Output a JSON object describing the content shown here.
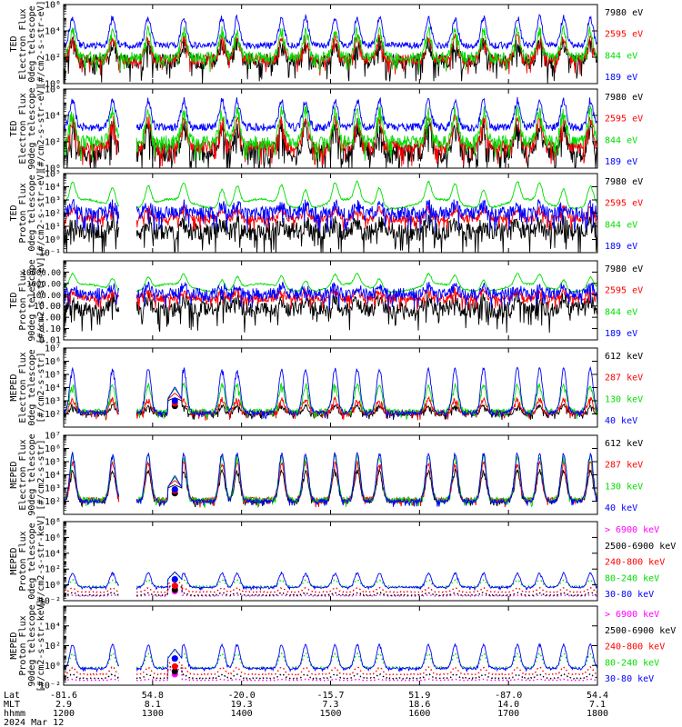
{
  "chart_data": {
    "type": "line",
    "panels": [
      {
        "ylabel": [
          "TED",
          "Electron Flux",
          "0deg telescope",
          "[#/cm2-s-str-eV]"
        ],
        "yscale": "log",
        "ylim": [
          1,
          1000000
        ],
        "ticks": [
          {
            "v": 1,
            "label": "10⁰"
          },
          {
            "v": 100,
            "label": "10²"
          },
          {
            "v": 10000,
            "label": "10⁴"
          },
          {
            "v": 1000000,
            "label": "10⁶"
          }
        ],
        "series": [
          {
            "name": "7980 eV",
            "color": "#000000",
            "base": 1.7,
            "spike": 1.3,
            "noise": 0.6,
            "trace": "noisy"
          },
          {
            "name": "2595 eV",
            "color": "#ff0000",
            "base": 1.8,
            "spike": 1.6,
            "noise": 0.4,
            "trace": "noisy"
          },
          {
            "name": "844 eV",
            "color": "#00dd00",
            "base": 2.0,
            "spike": 2.0,
            "noise": 0.4,
            "trace": "noisy"
          },
          {
            "name": "189 eV",
            "color": "#0000ff",
            "base": 2.9,
            "spike": 2.1,
            "noise": 0.25,
            "trace": "band"
          }
        ]
      },
      {
        "ylabel": [
          "TED",
          "Electron Flux",
          "90deg telescope",
          "[#/cm2-s-str-eV]"
        ],
        "yscale": "log",
        "ylim": [
          1,
          1000000
        ],
        "ticks": [
          {
            "v": 1,
            "label": "10⁰"
          },
          {
            "v": 100,
            "label": "10²"
          },
          {
            "v": 10000,
            "label": "10⁴"
          },
          {
            "v": 1000000,
            "label": "10⁶"
          }
        ],
        "series": [
          {
            "name": "7980 eV",
            "color": "#000000",
            "base": 1.2,
            "spike": 1.9,
            "noise": 0.8,
            "trace": "noisy"
          },
          {
            "name": "2595 eV",
            "color": "#ff0000",
            "base": 1.6,
            "spike": 2.0,
            "noise": 0.5,
            "trace": "noisy"
          },
          {
            "name": "844 eV",
            "color": "#00dd00",
            "base": 2.0,
            "spike": 2.3,
            "noise": 0.5,
            "trace": "noisy"
          },
          {
            "name": "189 eV",
            "color": "#0000ff",
            "base": 3.1,
            "spike": 2.0,
            "noise": 0.3,
            "trace": "band"
          }
        ]
      },
      {
        "ylabel": [
          "TED",
          "Proton Flux",
          "0deg telescope",
          "[#/cm2-s-str-eV]"
        ],
        "yscale": "log",
        "ylim": [
          0.1,
          100000
        ],
        "ticks": [
          {
            "v": 0.1,
            "label": "10⁻¹"
          },
          {
            "v": 1,
            "label": "10⁰"
          },
          {
            "v": 10,
            "label": "10¹"
          },
          {
            "v": 100,
            "label": "10²"
          },
          {
            "v": 1000,
            "label": "10³"
          },
          {
            "v": 10000,
            "label": "10⁴"
          },
          {
            "v": 100000,
            "label": "10⁵"
          }
        ],
        "series": [
          {
            "name": "7980 eV",
            "color": "#000000",
            "base": 0.6,
            "spike": 0.6,
            "noise": 0.7,
            "trace": "noisy"
          },
          {
            "name": "2595 eV",
            "color": "#ff0000",
            "base": 1.6,
            "spike": 0.7,
            "noise": 0.3,
            "trace": "noisy"
          },
          {
            "name": "844 eV",
            "color": "#00dd00",
            "base": 2.7,
            "spike": 1.4,
            "noise": 0.15,
            "trace": "smooth"
          },
          {
            "name": "189 eV",
            "color": "#0000ff",
            "base": 2.0,
            "spike": 0.6,
            "noise": 0.5,
            "trace": "noisy"
          }
        ]
      },
      {
        "ylabel": [
          "TED",
          "Proton Flux",
          "90deg telescope",
          "[#/cm2-s-str-eV]"
        ],
        "yscale": "log",
        "ylim": [
          0.01,
          100000
        ],
        "ticks": [
          {
            "v": 0.01,
            "label": "0.01"
          },
          {
            "v": 0.1,
            "label": "0.10"
          },
          {
            "v": 1,
            "label": "1.00"
          },
          {
            "v": 10,
            "label": "10.00"
          },
          {
            "v": 100,
            "label": "100.00"
          },
          {
            "v": 1000,
            "label": "1000.00"
          },
          {
            "v": 10000,
            "label": "10000.00"
          }
        ],
        "series": [
          {
            "name": "7980 eV",
            "color": "#000000",
            "base": 0.7,
            "spike": 0.8,
            "noise": 0.7,
            "trace": "noisy"
          },
          {
            "name": "2595 eV",
            "color": "#ff0000",
            "base": 1.7,
            "spike": 0.6,
            "noise": 0.35,
            "trace": "noisy"
          },
          {
            "name": "844 eV",
            "color": "#00dd00",
            "base": 2.6,
            "spike": 1.0,
            "noise": 0.15,
            "trace": "smooth"
          },
          {
            "name": "189 eV",
            "color": "#0000ff",
            "base": 2.1,
            "spike": 0.6,
            "noise": 0.5,
            "trace": "noisy"
          }
        ]
      },
      {
        "ylabel": [
          "MEPED",
          "Electron Flux",
          "0deg telescope",
          "[#/cm2-s-str]"
        ],
        "yscale": "log",
        "ylim": [
          10,
          10000000
        ],
        "ticks": [
          {
            "v": 100,
            "label": "10²"
          },
          {
            "v": 1000,
            "label": "10³"
          },
          {
            "v": 10000,
            "label": "10⁴"
          },
          {
            "v": 100000,
            "label": "10⁵"
          },
          {
            "v": 1000000,
            "label": "10⁶"
          },
          {
            "v": 10000000,
            "label": "10⁷"
          }
        ],
        "series": [
          {
            "name": "612 keV",
            "color": "#000000",
            "base": 2.0,
            "spike": 0.6,
            "noise": 0.15,
            "trace": "floor"
          },
          {
            "name": "287 keV",
            "color": "#ff0000",
            "base": 2.1,
            "spike": 1.0,
            "noise": 0.2,
            "trace": "floor"
          },
          {
            "name": "130 keV",
            "color": "#00dd00",
            "base": 2.2,
            "spike": 2.0,
            "noise": 0.2,
            "trace": "floor"
          },
          {
            "name": "40 keV",
            "color": "#0000ff",
            "base": 2.1,
            "spike": 3.3,
            "noise": 0.15,
            "trace": "floor"
          }
        ]
      },
      {
        "ylabel": [
          "MEPED",
          "Electron Flux",
          "90deg telescope",
          "[#/cm2-s-str]"
        ],
        "yscale": "log",
        "ylim": [
          10,
          10000000
        ],
        "ticks": [
          {
            "v": 100,
            "label": "10²"
          },
          {
            "v": 1000,
            "label": "10³"
          },
          {
            "v": 10000,
            "label": "10⁴"
          },
          {
            "v": 100000,
            "label": "10⁵"
          },
          {
            "v": 1000000,
            "label": "10⁶"
          },
          {
            "v": 10000000,
            "label": "10⁷"
          }
        ],
        "series": [
          {
            "name": "612 keV",
            "color": "#000000",
            "base": 2.0,
            "spike": 2.3,
            "noise": 0.15,
            "trace": "floor"
          },
          {
            "name": "287 keV",
            "color": "#ff0000",
            "base": 2.1,
            "spike": 2.8,
            "noise": 0.2,
            "trace": "floor"
          },
          {
            "name": "130 keV",
            "color": "#00dd00",
            "base": 2.1,
            "spike": 3.3,
            "noise": 0.2,
            "trace": "floor"
          },
          {
            "name": "40 keV",
            "color": "#0000ff",
            "base": 2.0,
            "spike": 3.6,
            "noise": 0.15,
            "trace": "floor"
          }
        ]
      },
      {
        "ylabel": [
          "MEPED",
          "Proton Flux",
          "0deg telescope",
          "[#/cm2-s-str-keV]"
        ],
        "yscale": "log",
        "ylim": [
          0.01,
          100000000
        ],
        "ticks": [
          {
            "v": 0.01,
            "label": "10⁻²"
          },
          {
            "v": 1,
            "label": "10⁰"
          },
          {
            "v": 100,
            "label": "10²"
          },
          {
            "v": 10000,
            "label": "10⁴"
          },
          {
            "v": 1000000,
            "label": "10⁶"
          },
          {
            "v": 100000000,
            "label": "10⁸"
          }
        ],
        "series": [
          {
            "name": "> 6900 keV",
            "color": "#ff00ff",
            "base": -1.4,
            "spike": 0.1,
            "noise": 0.05,
            "trace": "dots"
          },
          {
            "name": "2500-6900 keV",
            "color": "#000000",
            "base": -1.3,
            "spike": 0.3,
            "noise": 0.1,
            "trace": "dots"
          },
          {
            "name": "240-800 keV",
            "color": "#ff0000",
            "base": -0.9,
            "spike": 0.5,
            "noise": 0.1,
            "trace": "dots"
          },
          {
            "name": "80-240 keV",
            "color": "#00dd00",
            "base": -0.2,
            "spike": 0.8,
            "noise": 0.1,
            "trace": "dots"
          },
          {
            "name": "30-80 keV",
            "color": "#0000ff",
            "base": -0.3,
            "spike": 1.8,
            "noise": 0.1,
            "trace": "floor"
          }
        ]
      },
      {
        "ylabel": [
          "MEPED",
          "Proton Flux",
          "90deg telescope",
          "[#/cm2-s-str-keV]"
        ],
        "yscale": "log",
        "ylim": [
          0.01,
          1000000
        ],
        "ticks": [
          {
            "v": 0.01,
            "label": "10⁻²"
          },
          {
            "v": 1,
            "label": "10⁰"
          },
          {
            "v": 100,
            "label": "10²"
          },
          {
            "v": 10000,
            "label": "10⁴"
          }
        ],
        "series": [
          {
            "name": "> 6900 keV",
            "color": "#ff00ff",
            "base": -1.5,
            "spike": 0.1,
            "noise": 0.05,
            "trace": "dots"
          },
          {
            "name": "2500-6900 keV",
            "color": "#000000",
            "base": -1.3,
            "spike": 0.4,
            "noise": 0.1,
            "trace": "dots"
          },
          {
            "name": "240-800 keV",
            "color": "#ff0000",
            "base": -0.9,
            "spike": 0.7,
            "noise": 0.1,
            "trace": "dots"
          },
          {
            "name": "80-240 keV",
            "color": "#00dd00",
            "base": -0.2,
            "spike": 1.4,
            "noise": 0.1,
            "trace": "dots"
          },
          {
            "name": "30-80 keV",
            "color": "#0000ff",
            "base": -0.3,
            "spike": 2.4,
            "noise": 0.1,
            "trace": "floor"
          }
        ]
      }
    ],
    "x_axis": {
      "row_labels": [
        "Lat",
        "MLT",
        "hhmm"
      ],
      "date": "2024 Mar 12",
      "ticks": [
        {
          "time": "1200",
          "lat": "-81.6",
          "mlt": "2.9"
        },
        {
          "time": "1300",
          "lat": "54.8",
          "mlt": "8.1"
        },
        {
          "time": "1400",
          "lat": "-20.0",
          "mlt": "19.3"
        },
        {
          "time": "1500",
          "lat": "-15.7",
          "mlt": "7.3"
        },
        {
          "time": "1600",
          "lat": "51.9",
          "mlt": "18.6"
        },
        {
          "time": "1700",
          "lat": "-87.0",
          "mlt": "14.0"
        },
        {
          "time": "1800",
          "lat": "54.4",
          "mlt": "7.1"
        }
      ]
    },
    "events": {
      "spikes_hours": [
        12.1,
        12.55,
        12.95,
        13.35,
        13.78,
        13.95,
        14.45,
        14.72,
        15.05,
        15.3,
        15.55,
        16.1,
        16.4,
        16.72,
        17.1,
        17.35,
        17.62,
        17.92
      ],
      "gap_hours": [
        12.62,
        12.82
      ],
      "eclipse_hour": 13.25
    }
  }
}
